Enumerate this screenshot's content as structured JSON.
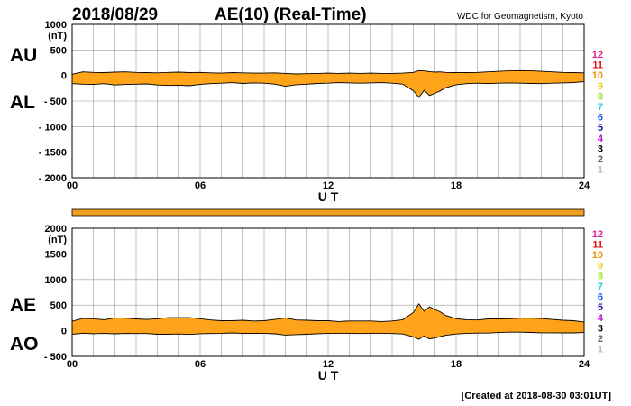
{
  "header": {
    "date": "2018/08/29",
    "title": "AE(10) (Real-Time)",
    "source": "WDC for Geomagnetism, Kyoto"
  },
  "footer": {
    "created": "[Created at 2018-08-30 03:01UT]"
  },
  "colors": {
    "fill": "#ffa31a",
    "line": "#000000",
    "grid": "#9a9a9a",
    "bar": "#f0a020"
  },
  "legend_scale": [
    {
      "label": "12",
      "color": "#e0208c"
    },
    {
      "label": "11",
      "color": "#e01010"
    },
    {
      "label": "10",
      "color": "#f09010"
    },
    {
      "label": "9",
      "color": "#f0d010"
    },
    {
      "label": "8",
      "color": "#a0e020"
    },
    {
      "label": "7",
      "color": "#20d0e0"
    },
    {
      "label": "6",
      "color": "#1060f0"
    },
    {
      "label": "5",
      "color": "#1010a0"
    },
    {
      "label": "4",
      "color": "#c010e0"
    },
    {
      "label": "3",
      "color": "#000000"
    },
    {
      "label": "2",
      "color": "#606060"
    },
    {
      "label": "1",
      "color": "#bbbbbb"
    }
  ],
  "chart_data": [
    {
      "type": "area",
      "upper_label": "AU",
      "lower_label": "AL",
      "y_unit": "(nT)",
      "xlabel": "U T",
      "xlim": [
        0,
        24
      ],
      "ylim": [
        -2000,
        1000
      ],
      "x_ticks": [
        0,
        6,
        12,
        18,
        24
      ],
      "x_tick_labels": [
        "00",
        "06",
        "12",
        "18",
        "24"
      ],
      "y_ticks": [
        1000,
        500,
        0,
        -500,
        -1000,
        -1500,
        -2000
      ],
      "y_tick_labels": [
        "1000",
        "500",
        "0",
        "- 500",
        "- 1000",
        "- 1500",
        "- 2000"
      ],
      "grid": true,
      "x": [
        0,
        0.5,
        1,
        1.5,
        2,
        2.5,
        3,
        3.5,
        4,
        4.5,
        5,
        5.5,
        6,
        6.5,
        7,
        7.5,
        8,
        8.5,
        9,
        9.5,
        10,
        10.5,
        11,
        11.5,
        12,
        12.5,
        13,
        13.5,
        14,
        14.5,
        15,
        15.5,
        16,
        16.25,
        16.5,
        16.75,
        17,
        17.25,
        17.5,
        18,
        18.5,
        19,
        19.5,
        20,
        20.5,
        21,
        21.5,
        22,
        22.5,
        23,
        23.5,
        24
      ],
      "series": [
        {
          "name": "AU",
          "values": [
            25,
            70,
            60,
            55,
            65,
            70,
            60,
            55,
            50,
            60,
            65,
            55,
            60,
            50,
            45,
            55,
            50,
            45,
            45,
            50,
            40,
            30,
            35,
            40,
            45,
            40,
            45,
            40,
            45,
            40,
            40,
            45,
            60,
            95,
            90,
            75,
            65,
            70,
            60,
            55,
            55,
            60,
            70,
            80,
            90,
            95,
            90,
            80,
            70,
            60,
            55,
            50
          ]
        },
        {
          "name": "AL",
          "values": [
            -160,
            -170,
            -175,
            -160,
            -185,
            -175,
            -170,
            -165,
            -185,
            -195,
            -190,
            -200,
            -175,
            -160,
            -150,
            -140,
            -155,
            -145,
            -150,
            -170,
            -210,
            -180,
            -170,
            -155,
            -150,
            -140,
            -145,
            -150,
            -145,
            -140,
            -150,
            -170,
            -300,
            -430,
            -290,
            -390,
            -350,
            -300,
            -240,
            -180,
            -160,
            -150,
            -160,
            -150,
            -145,
            -150,
            -155,
            -160,
            -150,
            -145,
            -140,
            -120
          ]
        }
      ]
    },
    {
      "type": "area",
      "upper_label": "AE",
      "lower_label": "AO",
      "y_unit": "(nT)",
      "xlabel": "U T",
      "xlim": [
        0,
        24
      ],
      "ylim": [
        -500,
        2000
      ],
      "x_ticks": [
        0,
        6,
        12,
        18,
        24
      ],
      "x_tick_labels": [
        "00",
        "06",
        "12",
        "18",
        "24"
      ],
      "y_ticks": [
        2000,
        1500,
        1000,
        500,
        0,
        -500
      ],
      "y_tick_labels": [
        "2000",
        "1500",
        "1000",
        "500",
        "0",
        "- 500"
      ],
      "grid": true,
      "x": [
        0,
        0.5,
        1,
        1.5,
        2,
        2.5,
        3,
        3.5,
        4,
        4.5,
        5,
        5.5,
        6,
        6.5,
        7,
        7.5,
        8,
        8.5,
        9,
        9.5,
        10,
        10.5,
        11,
        11.5,
        12,
        12.5,
        13,
        13.5,
        14,
        14.5,
        15,
        15.5,
        16,
        16.25,
        16.5,
        16.75,
        17,
        17.25,
        17.5,
        18,
        18.5,
        19,
        19.5,
        20,
        20.5,
        21,
        21.5,
        22,
        22.5,
        23,
        23.5,
        24
      ],
      "series": [
        {
          "name": "AE",
          "values": [
            185,
            240,
            235,
            215,
            250,
            245,
            230,
            220,
            235,
            255,
            255,
            255,
            235,
            210,
            195,
            195,
            205,
            190,
            195,
            220,
            250,
            210,
            205,
            195,
            195,
            180,
            190,
            190,
            190,
            180,
            190,
            215,
            360,
            525,
            380,
            465,
            415,
            370,
            300,
            235,
            215,
            210,
            230,
            230,
            235,
            245,
            245,
            240,
            220,
            205,
            195,
            170
          ]
        },
        {
          "name": "AO",
          "values": [
            -68,
            -50,
            -58,
            -53,
            -60,
            -53,
            -55,
            -55,
            -68,
            -68,
            -63,
            -73,
            -58,
            -55,
            -53,
            -43,
            -53,
            -50,
            -53,
            -60,
            -85,
            -75,
            -68,
            -58,
            -53,
            -50,
            -50,
            -55,
            -50,
            -50,
            -55,
            -63,
            -120,
            -168,
            -100,
            -158,
            -143,
            -115,
            -90,
            -63,
            -53,
            -45,
            -45,
            -35,
            -28,
            -28,
            -33,
            -40,
            -40,
            -43,
            -43,
            -35
          ]
        }
      ]
    }
  ]
}
